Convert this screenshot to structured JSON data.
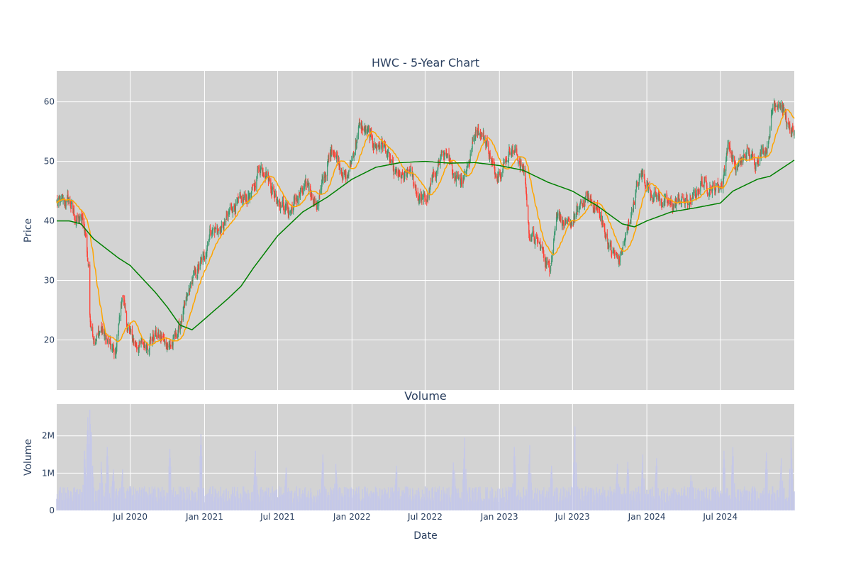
{
  "chart_data": [
    {
      "type": "candlestick",
      "title": "HWC - 5-Year Chart",
      "ylabel": "Price",
      "ylim": [
        11.6,
        65.2
      ],
      "y_ticks": [
        20,
        30,
        40,
        50,
        60
      ],
      "x_range": [
        "2020-01-01",
        "2024-12-31"
      ],
      "colors": {
        "up": "#3d9970",
        "down": "#ff4136",
        "ma_short": "#ffa500",
        "ma_long": "#008000",
        "plot_bg": "#d3d3d3",
        "grid": "#ffffff"
      },
      "close_keypoints": [
        [
          "2020-01-01",
          43.0
        ],
        [
          "2020-02-01",
          43.5
        ],
        [
          "2020-02-15",
          40.5
        ],
        [
          "2020-03-05",
          40.0
        ],
        [
          "2020-03-12",
          38.0
        ],
        [
          "2020-03-20",
          32.0
        ],
        [
          "2020-03-23",
          24.0
        ],
        [
          "2020-04-05",
          19.5
        ],
        [
          "2020-04-20",
          22.0
        ],
        [
          "2020-05-10",
          19.0
        ],
        [
          "2020-05-25",
          17.5
        ],
        [
          "2020-06-05",
          24.0
        ],
        [
          "2020-06-10",
          27.5
        ],
        [
          "2020-06-25",
          22.0
        ],
        [
          "2020-07-15",
          19.0
        ],
        [
          "2020-08-15",
          19.5
        ],
        [
          "2020-09-01",
          21.0
        ],
        [
          "2020-09-20",
          20.0
        ],
        [
          "2020-10-10",
          19.0
        ],
        [
          "2020-10-30",
          22.0
        ],
        [
          "2020-11-10",
          24.5
        ],
        [
          "2020-12-01",
          30.0
        ],
        [
          "2021-01-01",
          34.0
        ],
        [
          "2021-01-15",
          38.5
        ],
        [
          "2021-02-15",
          38.5
        ],
        [
          "2021-03-10",
          42.5
        ],
        [
          "2021-04-01",
          43.0
        ],
        [
          "2021-05-01",
          45.0
        ],
        [
          "2021-05-15",
          49.0
        ],
        [
          "2021-06-01",
          48.5
        ],
        [
          "2021-06-20",
          45.0
        ],
        [
          "2021-07-10",
          43.0
        ],
        [
          "2021-07-30",
          41.5
        ],
        [
          "2021-08-20",
          44.0
        ],
        [
          "2021-09-15",
          46.0
        ],
        [
          "2021-10-05",
          42.5
        ],
        [
          "2021-10-25",
          47.5
        ],
        [
          "2021-11-15",
          52.5
        ],
        [
          "2021-12-10",
          48.0
        ],
        [
          "2021-12-20",
          47.0
        ],
        [
          "2022-01-10",
          53.0
        ],
        [
          "2022-01-20",
          56.0
        ],
        [
          "2022-02-10",
          54.5
        ],
        [
          "2022-03-01",
          52.5
        ],
        [
          "2022-03-20",
          53.0
        ],
        [
          "2022-04-15",
          48.0
        ],
        [
          "2022-05-10",
          47.0
        ],
        [
          "2022-05-25",
          48.5
        ],
        [
          "2022-06-15",
          44.0
        ],
        [
          "2022-07-05",
          43.5
        ],
        [
          "2022-07-25",
          48.0
        ],
        [
          "2022-08-15",
          51.5
        ],
        [
          "2022-09-05",
          48.5
        ],
        [
          "2022-10-01",
          47.0
        ],
        [
          "2022-10-20",
          50.5
        ],
        [
          "2022-11-05",
          56.0
        ],
        [
          "2022-12-01",
          53.0
        ],
        [
          "2022-12-20",
          48.0
        ],
        [
          "2023-01-10",
          49.0
        ],
        [
          "2023-01-31",
          52.5
        ],
        [
          "2023-02-20",
          50.0
        ],
        [
          "2023-03-05",
          48.0
        ],
        [
          "2023-03-15",
          38.0
        ],
        [
          "2023-04-10",
          36.0
        ],
        [
          "2023-05-05",
          32.0
        ],
        [
          "2023-05-25",
          42.0
        ],
        [
          "2023-06-15",
          38.5
        ],
        [
          "2023-07-15",
          41.5
        ],
        [
          "2023-08-05",
          44.0
        ],
        [
          "2023-09-01",
          42.0
        ],
        [
          "2023-10-05",
          35.0
        ],
        [
          "2023-10-25",
          33.5
        ],
        [
          "2023-11-15",
          38.5
        ],
        [
          "2023-12-05",
          45.0
        ],
        [
          "2023-12-20",
          48.0
        ],
        [
          "2024-01-10",
          45.0
        ],
        [
          "2024-02-05",
          43.5
        ],
        [
          "2024-03-01",
          42.5
        ],
        [
          "2024-03-25",
          43.5
        ],
        [
          "2024-04-20",
          43.0
        ],
        [
          "2024-05-15",
          46.5
        ],
        [
          "2024-06-15",
          45.5
        ],
        [
          "2024-07-05",
          46.0
        ],
        [
          "2024-07-20",
          53.0
        ],
        [
          "2024-08-10",
          48.5
        ],
        [
          "2024-09-05",
          51.5
        ],
        [
          "2024-09-25",
          50.0
        ],
        [
          "2024-10-10",
          51.5
        ],
        [
          "2024-10-25",
          52.5
        ],
        [
          "2024-11-10",
          60.0
        ],
        [
          "2024-11-25",
          60.0
        ],
        [
          "2024-12-10",
          57.5
        ],
        [
          "2024-12-18",
          55.0
        ],
        [
          "2024-12-31",
          54.5
        ]
      ],
      "ma_long_keypoints": [
        [
          "2020-01-01",
          40.0
        ],
        [
          "2020-02-01",
          40.0
        ],
        [
          "2020-03-01",
          39.5
        ],
        [
          "2020-04-01",
          37.0
        ],
        [
          "2020-06-01",
          33.8
        ],
        [
          "2020-07-01",
          32.5
        ],
        [
          "2020-09-01",
          28.0
        ],
        [
          "2020-10-01",
          25.5
        ],
        [
          "2020-11-01",
          22.5
        ],
        [
          "2020-12-01",
          21.7
        ],
        [
          "2021-01-01",
          23.5
        ],
        [
          "2021-03-01",
          27.0
        ],
        [
          "2021-04-01",
          29.0
        ],
        [
          "2021-05-01",
          32.0
        ],
        [
          "2021-07-01",
          37.5
        ],
        [
          "2021-09-01",
          41.5
        ],
        [
          "2021-11-01",
          44.0
        ],
        [
          "2022-01-01",
          47.0
        ],
        [
          "2022-03-01",
          49.0
        ],
        [
          "2022-05-01",
          49.8
        ],
        [
          "2022-07-01",
          50.0
        ],
        [
          "2022-09-01",
          49.7
        ],
        [
          "2022-11-01",
          49.8
        ],
        [
          "2023-01-01",
          49.3
        ],
        [
          "2023-03-01",
          48.5
        ],
        [
          "2023-05-01",
          46.5
        ],
        [
          "2023-07-01",
          45.0
        ],
        [
          "2023-09-01",
          42.5
        ],
        [
          "2023-11-01",
          39.5
        ],
        [
          "2023-12-01",
          39.0
        ],
        [
          "2024-01-01",
          40.0
        ],
        [
          "2024-03-01",
          41.5
        ],
        [
          "2024-05-01",
          42.2
        ],
        [
          "2024-07-01",
          43.0
        ],
        [
          "2024-08-01",
          45.0
        ],
        [
          "2024-10-01",
          47.0
        ],
        [
          "2024-11-01",
          47.5
        ],
        [
          "2024-12-31",
          50.2
        ]
      ],
      "ma_short_window_days": 30
    },
    {
      "type": "bar",
      "title": "Volume",
      "xlabel": "Date",
      "ylabel": "Volume",
      "ylim": [
        0,
        2850000
      ],
      "y_ticks": [
        0,
        1000000,
        2000000
      ],
      "y_tick_labels": [
        "0",
        "1M",
        "2M"
      ],
      "x_ticks": [
        "2020-07-01",
        "2021-01-01",
        "2021-07-01",
        "2022-01-01",
        "2022-07-01",
        "2023-01-01",
        "2023-07-01",
        "2024-01-01",
        "2024-07-01"
      ],
      "x_tick_labels": [
        "Jul 2020",
        "Jan 2021",
        "Jul 2021",
        "Jan 2022",
        "Jul 2022",
        "Jan 2023",
        "Jul 2023",
        "Jan 2024",
        "Jul 2024"
      ],
      "bar_color": "#c5c8e8",
      "baseline_volume": 480000,
      "spikes": [
        [
          "2020-03-10",
          1600000
        ],
        [
          "2020-03-18",
          2500000
        ],
        [
          "2020-03-23",
          2700000
        ],
        [
          "2020-03-27",
          2100000
        ],
        [
          "2020-04-20",
          1300000
        ],
        [
          "2020-05-05",
          1700000
        ],
        [
          "2020-05-20",
          1100000
        ],
        [
          "2020-06-12",
          1100000
        ],
        [
          "2020-10-07",
          1650000
        ],
        [
          "2020-12-23",
          2050000
        ],
        [
          "2021-05-07",
          1600000
        ],
        [
          "2021-07-22",
          1150000
        ],
        [
          "2021-10-21",
          1500000
        ],
        [
          "2021-11-22",
          1250000
        ],
        [
          "2022-04-21",
          1200000
        ],
        [
          "2022-09-10",
          1500000
        ],
        [
          "2022-10-07",
          1950000
        ],
        [
          "2023-02-07",
          1700000
        ],
        [
          "2023-03-17",
          1750000
        ],
        [
          "2023-05-10",
          1200000
        ],
        [
          "2023-07-07",
          2250000
        ],
        [
          "2023-10-20",
          1250000
        ],
        [
          "2023-11-15",
          1300000
        ],
        [
          "2023-12-22",
          1500000
        ],
        [
          "2024-01-25",
          1400000
        ],
        [
          "2024-04-20",
          1100000
        ],
        [
          "2024-07-10",
          1600000
        ],
        [
          "2024-08-01",
          1700000
        ],
        [
          "2024-10-23",
          1550000
        ],
        [
          "2024-11-29",
          1400000
        ],
        [
          "2024-12-23",
          1950000
        ]
      ]
    }
  ]
}
